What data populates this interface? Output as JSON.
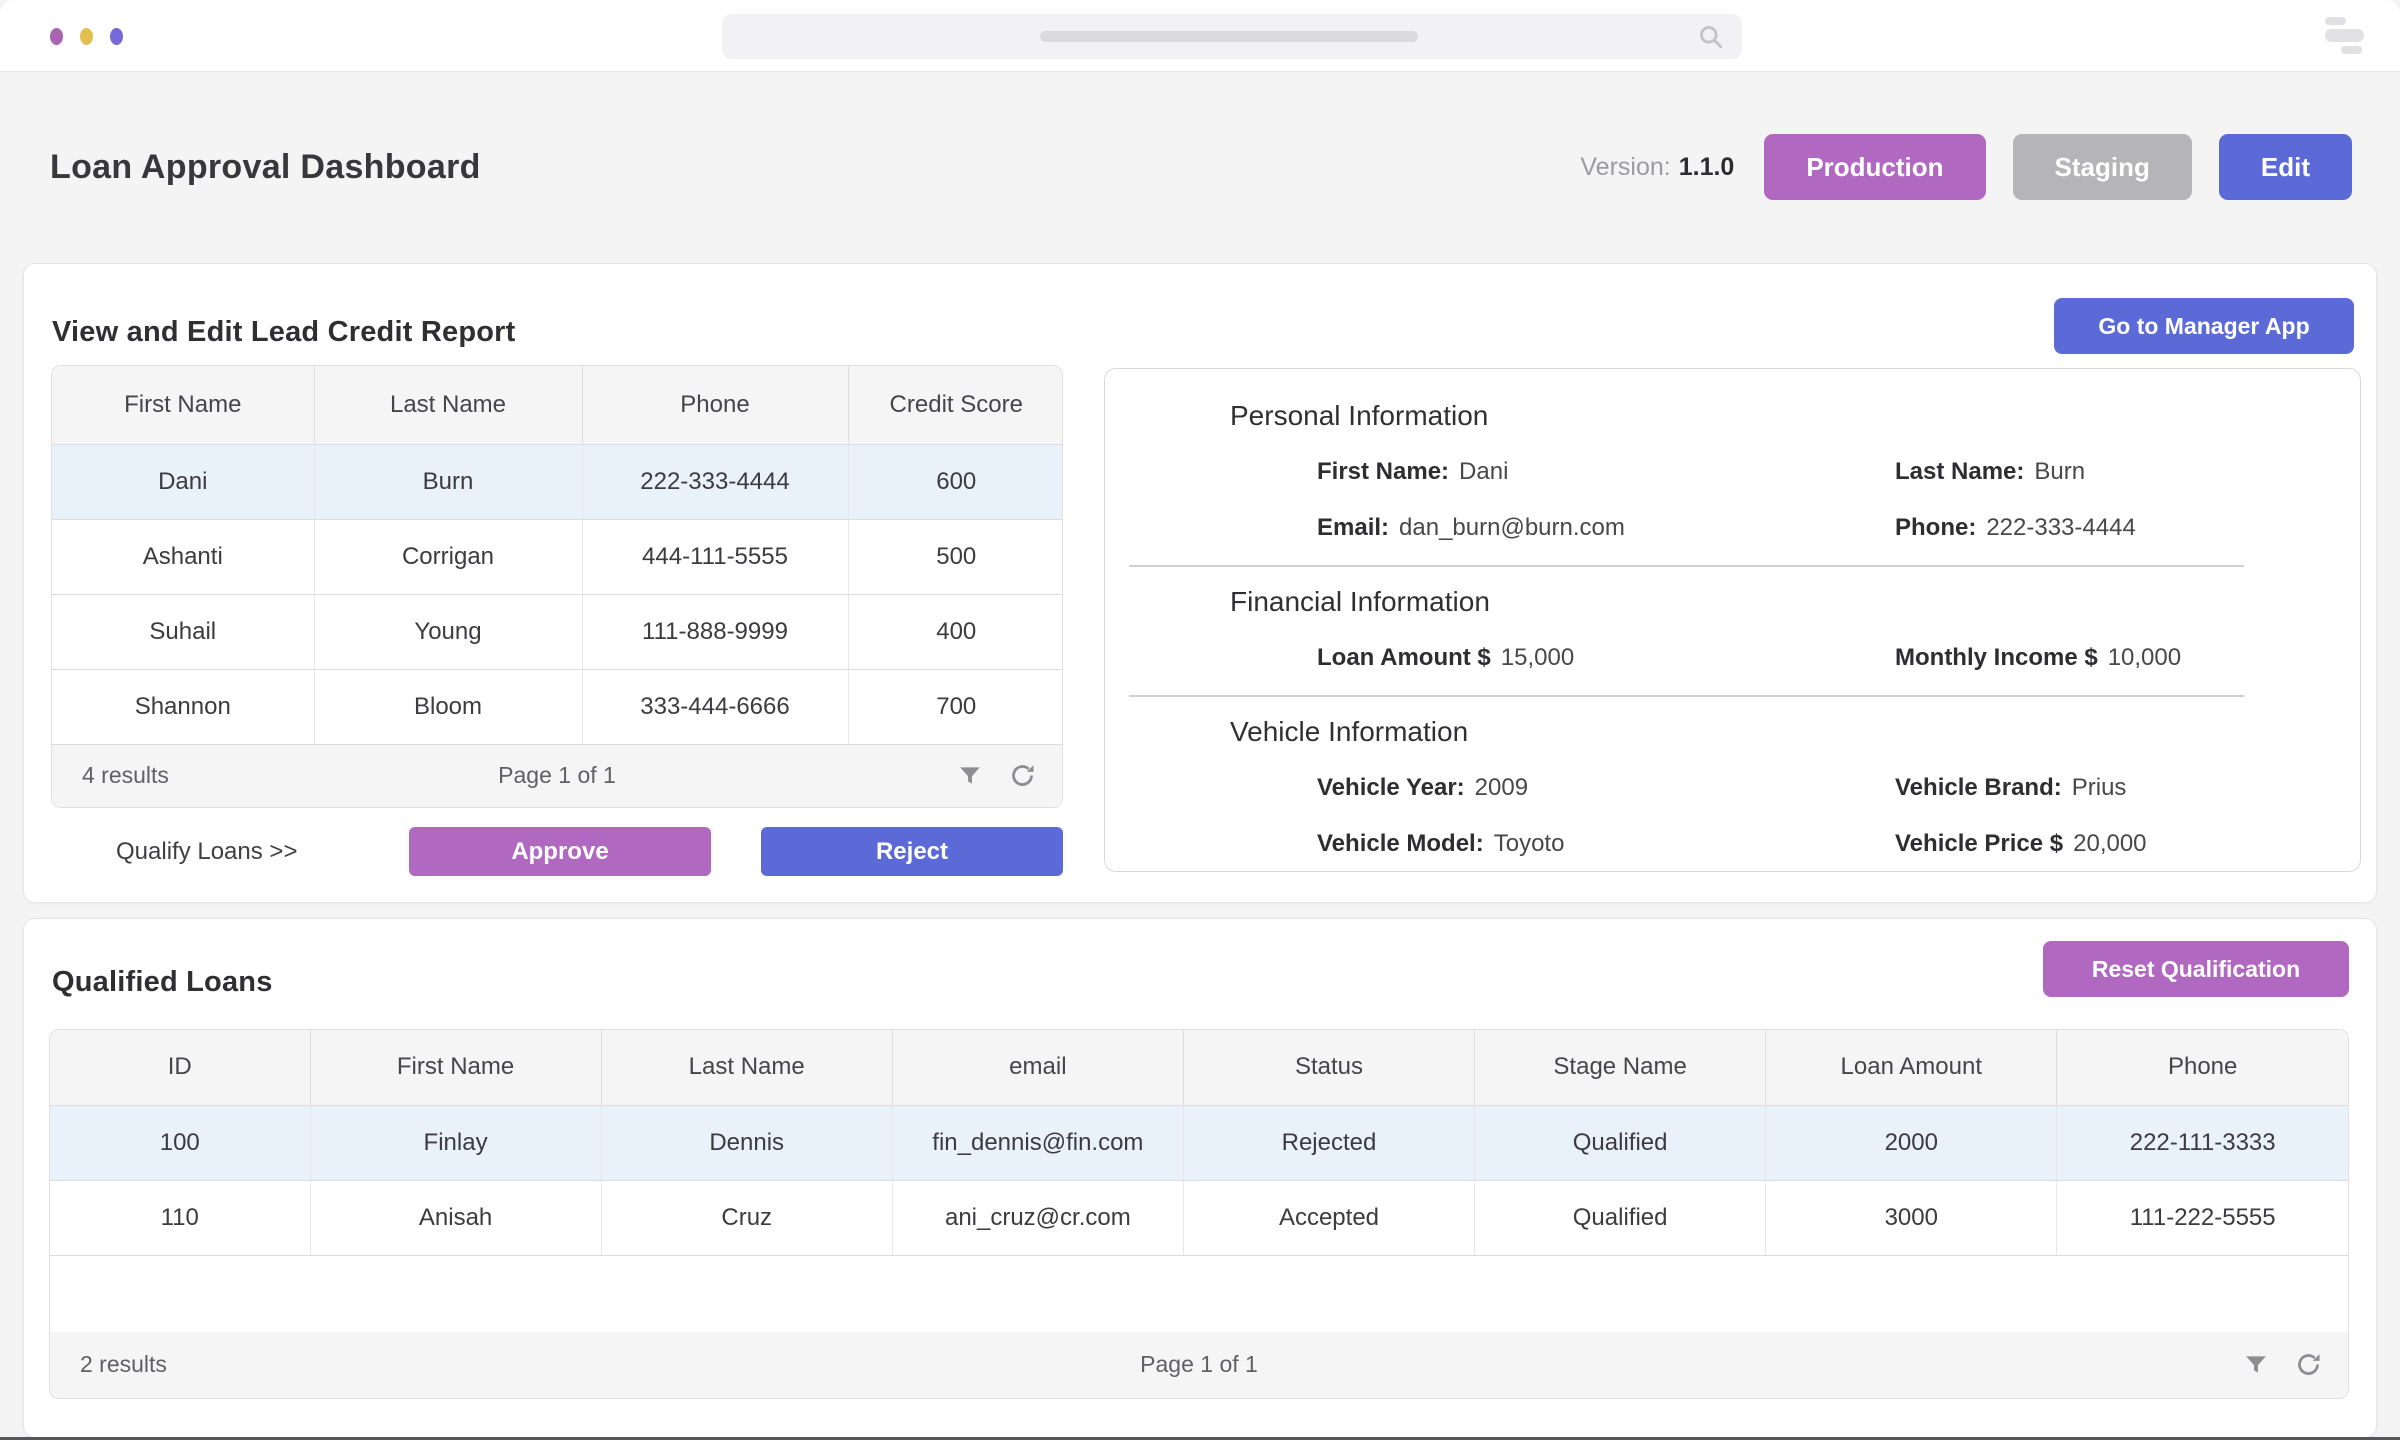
{
  "colors": {
    "purple": "#b168c0",
    "indigo": "#5b6ad6",
    "gray_button": "#b5b5b8",
    "row_highlight": "#e9f1fb",
    "window_dots": [
      "#a965b3",
      "#e2bf4f",
      "#7568d8"
    ]
  },
  "chrome": {
    "search_icon": "magnifier-icon",
    "window_menu_icon": "stacked-bars-icon"
  },
  "header": {
    "title": "Loan Approval Dashboard",
    "version_label": "Version:",
    "version_value": "1.1.0",
    "env_buttons": [
      {
        "label": "Production",
        "color": "#b168c0"
      },
      {
        "label": "Staging",
        "color": "#b5b5b8"
      },
      {
        "label": "Edit",
        "color": "#5b6ad6"
      }
    ]
  },
  "lead_card": {
    "title": "View and Edit Lead Credit Report",
    "manager_button_label": "Go to Manager App",
    "table": {
      "columns": [
        "First Name",
        "Last Name",
        "Phone",
        "Credit Score"
      ],
      "rows": [
        [
          "Dani",
          "Burn",
          "222-333-4444",
          "600"
        ],
        [
          "Ashanti",
          "Corrigan",
          "444-111-5555",
          "500"
        ],
        [
          "Suhail",
          "Young",
          "111-888-9999",
          "400"
        ],
        [
          "Shannon",
          "Bloom",
          "333-444-6666",
          "700"
        ]
      ],
      "selected_row_index": 0,
      "footer": {
        "results": "4 results",
        "page": "Page 1 of 1",
        "icons": [
          "filter-icon",
          "refresh-icon"
        ]
      }
    },
    "qualify_label": "Qualify Loans >>",
    "approve_label": "Approve",
    "reject_label": "Reject"
  },
  "detail_panel": {
    "sections": [
      {
        "heading": "Personal Information",
        "rows": [
          [
            {
              "label": "First Name:",
              "value": "Dani"
            },
            {
              "label": "Last Name:",
              "value": "Burn"
            }
          ],
          [
            {
              "label": "Email:",
              "value": "dan_burn@burn.com"
            },
            {
              "label": "Phone:",
              "value": "222-333-4444"
            }
          ]
        ]
      },
      {
        "heading": "Financial Information",
        "rows": [
          [
            {
              "label": "Loan Amount $",
              "value": "15,000"
            },
            {
              "label": "Monthly Income $",
              "value": "10,000"
            }
          ]
        ]
      },
      {
        "heading": "Vehicle Information",
        "rows": [
          [
            {
              "label": "Vehicle Year:",
              "value": "2009"
            },
            {
              "label": "Vehicle Brand:",
              "value": "Prius"
            }
          ],
          [
            {
              "label": "Vehicle Model:",
              "value": "Toyoto"
            },
            {
              "label": "Vehicle Price $",
              "value": "20,000"
            }
          ]
        ]
      }
    ]
  },
  "qualified_card": {
    "title": "Qualified Loans",
    "reset_button_label": "Reset Qualification",
    "table": {
      "columns": [
        "ID",
        "First Name",
        "Last Name",
        "email",
        "Status",
        "Stage Name",
        "Loan Amount",
        "Phone"
      ],
      "rows": [
        [
          "100",
          "Finlay",
          "Dennis",
          "fin_dennis@fin.com",
          "Rejected",
          "Qualified",
          "2000",
          "222-111-3333"
        ],
        [
          "110",
          "Anisah",
          "Cruz",
          "ani_cruz@cr.com",
          "Accepted",
          "Qualified",
          "3000",
          "111-222-5555"
        ]
      ],
      "selected_row_index": 0,
      "footer": {
        "results": "2 results",
        "page": "Page 1 of 1",
        "icons": [
          "filter-icon",
          "refresh-icon"
        ]
      }
    }
  }
}
